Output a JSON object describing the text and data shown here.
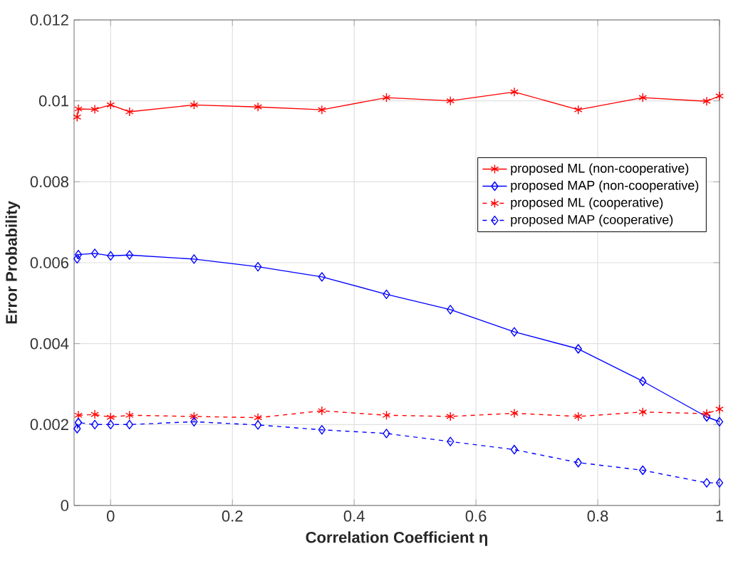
{
  "chart_data": {
    "type": "line",
    "xlabel": "Correlation Coefficient η",
    "ylabel": "Error Probability",
    "xlim": [
      -0.06,
      1
    ],
    "ylim": [
      0,
      0.012
    ],
    "xticks": [
      0,
      0.2,
      0.4,
      0.6,
      0.8,
      1
    ],
    "yticks": [
      0,
      0.002,
      0.004,
      0.006,
      0.008,
      0.01,
      0.012
    ],
    "grid": true,
    "legend": "right",
    "series": [
      {
        "name": "proposed ML (non-cooperative)",
        "color": "#ff0000",
        "marker": "cross",
        "line_style": "solid",
        "x": [
          -0.055,
          -0.053,
          -0.026,
          0,
          0.031,
          0.137,
          0.242,
          0.347,
          0.453,
          0.558,
          0.663,
          0.768,
          0.874,
          0.979,
          1.0
        ],
        "values": [
          0.0096,
          0.0098,
          0.00979,
          0.0099,
          0.00973,
          0.0099,
          0.00985,
          0.00978,
          0.01008,
          0.01,
          0.01022,
          0.00978,
          0.01008,
          0.00999,
          0.01012
        ]
      },
      {
        "name": "proposed MAP (non-cooperative)",
        "color": "#0000ff",
        "marker": "diamond",
        "line_style": "solid",
        "x": [
          -0.055,
          -0.053,
          -0.026,
          0,
          0.031,
          0.137,
          0.242,
          0.347,
          0.453,
          0.558,
          0.663,
          0.768,
          0.874,
          0.979,
          1.0
        ],
        "values": [
          0.0061,
          0.0062,
          0.00623,
          0.00617,
          0.00619,
          0.00609,
          0.0059,
          0.00565,
          0.00522,
          0.00484,
          0.00429,
          0.00387,
          0.00307,
          0.00219,
          0.00207
        ]
      },
      {
        "name": "proposed ML (cooperative)",
        "color": "#ff0000",
        "marker": "cross",
        "line_style": "dashed",
        "x": [
          -0.053,
          -0.026,
          0,
          0.031,
          0.137,
          0.242,
          0.347,
          0.453,
          0.558,
          0.663,
          0.768,
          0.874,
          0.979,
          1.0
        ],
        "values": [
          0.00223,
          0.00225,
          0.00218,
          0.00223,
          0.0022,
          0.00217,
          0.00234,
          0.00223,
          0.0022,
          0.00228,
          0.0022,
          0.00231,
          0.00227,
          0.00238
        ]
      },
      {
        "name": "proposed MAP (cooperative)",
        "color": "#0000ff",
        "marker": "diamond",
        "line_style": "dashed",
        "x": [
          -0.055,
          -0.053,
          -0.026,
          0,
          0.031,
          0.137,
          0.242,
          0.347,
          0.453,
          0.558,
          0.663,
          0.768,
          0.874,
          0.979,
          1.0
        ],
        "values": [
          0.0019,
          0.00205,
          0.002,
          0.002,
          0.002,
          0.00207,
          0.00199,
          0.00187,
          0.00178,
          0.00158,
          0.00138,
          0.00106,
          0.00087,
          0.00056,
          0.00056
        ]
      }
    ]
  }
}
